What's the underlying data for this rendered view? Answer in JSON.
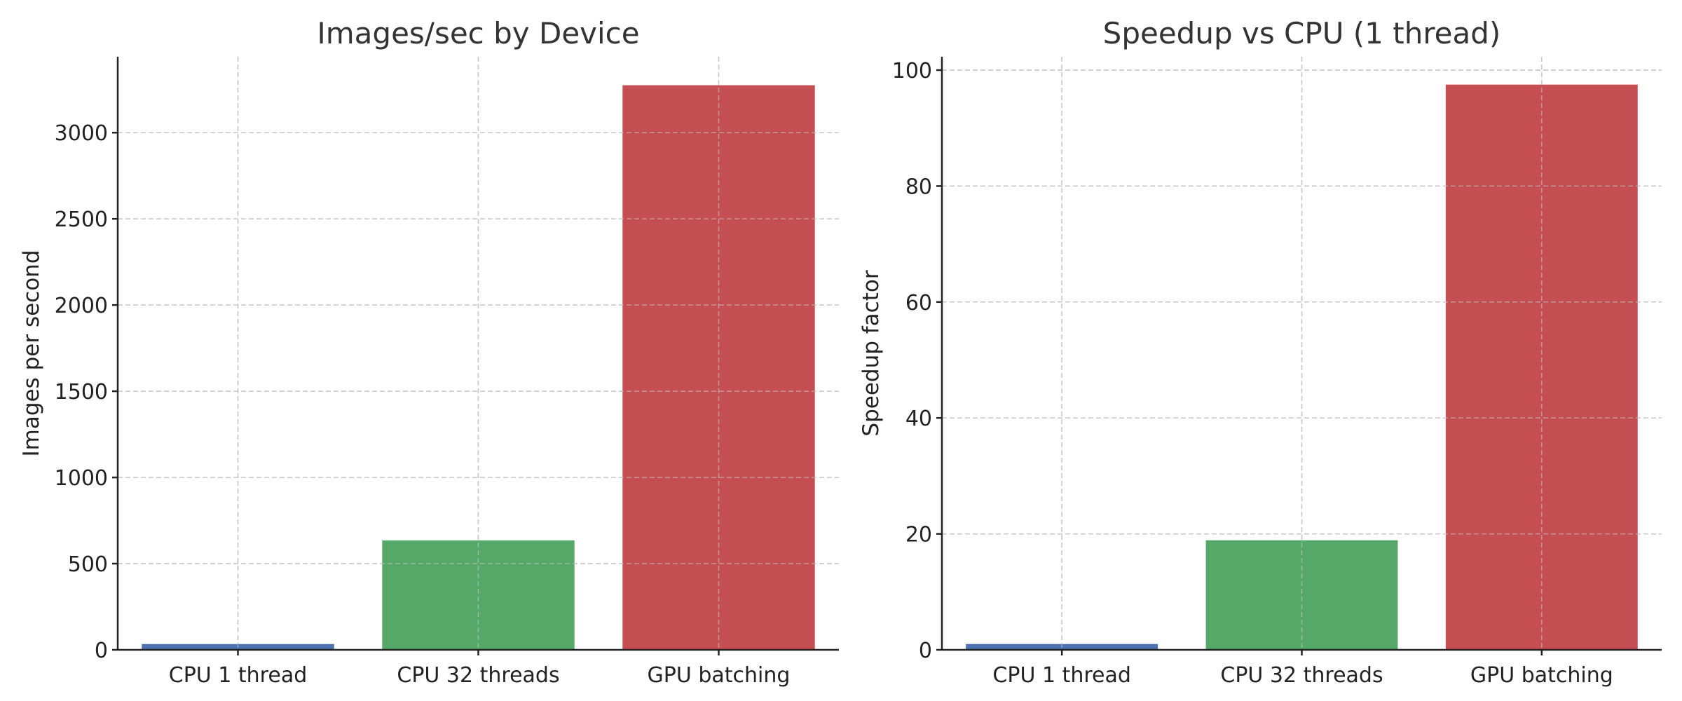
{
  "chart_data": [
    {
      "type": "bar",
      "title": "Images/sec by Device",
      "xlabel": "",
      "ylabel": "Images per second",
      "categories": [
        "CPU 1 thread",
        "CPU 32 threads",
        "GPU batching"
      ],
      "values": [
        33.6,
        635,
        3275
      ],
      "colors": [
        "#4c72b0",
        "#55a868",
        "#c44e52"
      ],
      "ylim": [
        0,
        3440
      ],
      "yticks": [
        0,
        500,
        1000,
        1500,
        2000,
        2500,
        3000
      ],
      "grid": true
    },
    {
      "type": "bar",
      "title": "Speedup vs CPU (1 thread)",
      "xlabel": "",
      "ylabel": "Speedup factor",
      "categories": [
        "CPU 1 thread",
        "CPU 32 threads",
        "GPU batching"
      ],
      "values": [
        1.0,
        18.9,
        97.5
      ],
      "colors": [
        "#4c72b0",
        "#55a868",
        "#c44e52"
      ],
      "ylim": [
        0,
        102.3
      ],
      "yticks": [
        0,
        20,
        40,
        60,
        80,
        100
      ],
      "grid": true
    }
  ]
}
